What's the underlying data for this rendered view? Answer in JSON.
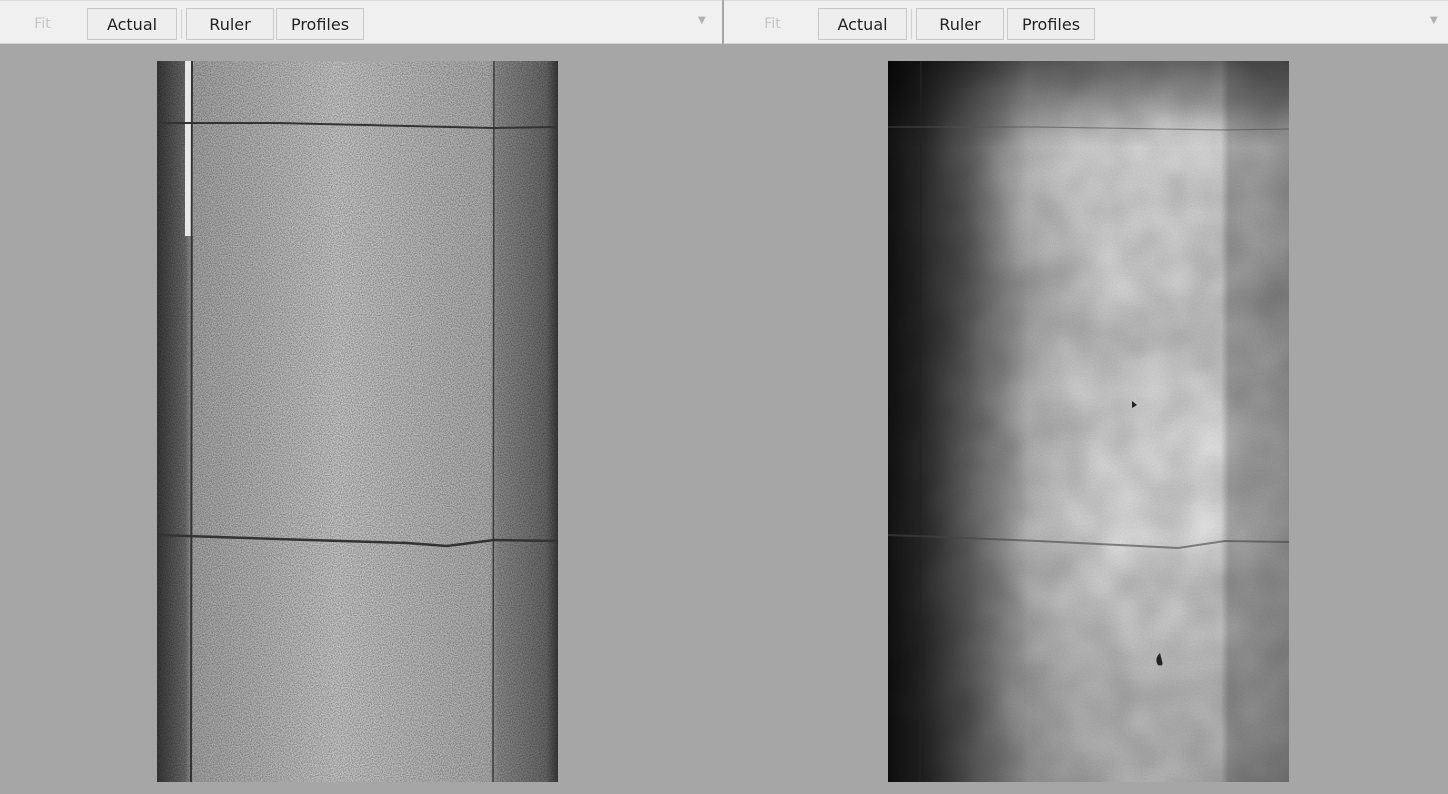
{
  "panels": [
    {
      "toolbar": {
        "fit": "Fit",
        "actual": "Actual",
        "ruler": "Ruler",
        "profiles": "Profiles"
      }
    },
    {
      "toolbar": {
        "fit": "Fit",
        "actual": "Actual",
        "ruler": "Ruler",
        "profiles": "Profiles"
      }
    }
  ]
}
